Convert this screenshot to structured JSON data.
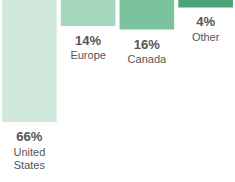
{
  "chart_data": {
    "type": "bar",
    "categories": [
      "United States",
      "Europe",
      "Canada",
      "Other"
    ],
    "values": [
      66,
      14,
      16,
      4
    ],
    "value_labels": [
      "66%",
      "14%",
      "16%",
      "4%"
    ],
    "colors": [
      "#cfe8da",
      "#a6d6bd",
      "#7bc39d",
      "#4aa679"
    ],
    "ylim": [
      0,
      66
    ],
    "data_labels": true,
    "tick_labels": false
  }
}
